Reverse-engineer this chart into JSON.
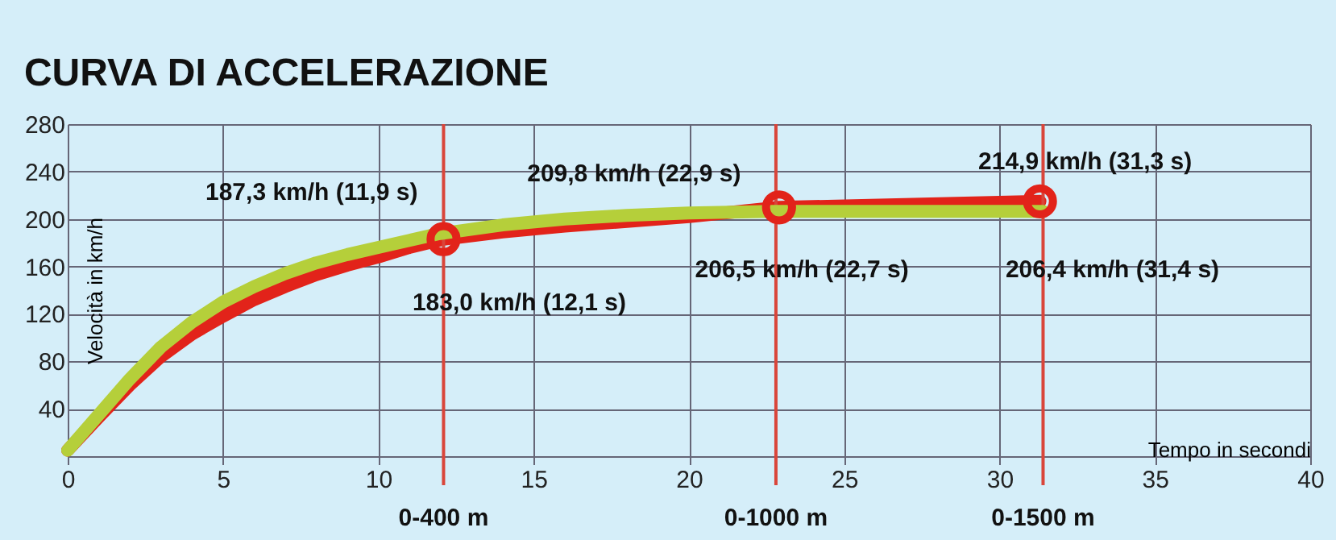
{
  "chart_data": {
    "type": "line",
    "title": "CURVA DI ACCELERAZIONE",
    "xlabel": "Tempo in secondi",
    "ylabel": "Velocità in km/h",
    "xlim": [
      0,
      40
    ],
    "xticks": [
      0,
      5,
      10,
      15,
      20,
      25,
      30,
      35,
      40
    ],
    "ylim": [
      0,
      280
    ],
    "yticks": [
      {
        "value": 0,
        "label": null
      },
      40,
      80,
      120,
      160,
      200,
      240,
      280
    ],
    "grid": true,
    "line_style": "solid",
    "series": [
      {
        "color": "#e2231a",
        "x": [
          0,
          1,
          2,
          3,
          4,
          5,
          6,
          7,
          8,
          9,
          10,
          11,
          12.1,
          14,
          16,
          18,
          20,
          22.9,
          31.3
        ],
        "values": [
          5,
          33,
          60,
          84,
          103,
          118,
          132,
          143,
          153,
          161,
          168,
          176,
          183,
          189,
          194,
          198,
          202,
          209.8,
          214.9
        ]
      },
      {
        "color": "#b5cf3a",
        "x": [
          0,
          1,
          2,
          3,
          4,
          5,
          6,
          7,
          8,
          9,
          10,
          11,
          11.9,
          14,
          16,
          18,
          20,
          22.7,
          31.4
        ],
        "values": [
          5,
          35,
          65,
          92,
          113,
          130,
          143,
          154,
          163,
          170,
          176,
          182,
          187.3,
          195,
          200,
          203,
          205,
          206.5,
          206.4
        ]
      },
      {
        "type": "scatter",
        "marker": "circle",
        "color": "#e2231a",
        "x": [
          12.1,
          22.9,
          31.3
        ],
        "values": [
          183.0,
          209.8,
          214.9
        ]
      }
    ],
    "ref_lines": [
      {
        "axis": "x",
        "value": 12.1,
        "label": "0-400 m",
        "color": "#d9453a"
      },
      {
        "axis": "x",
        "value": 22.8,
        "label": "0-1000 m",
        "color": "#d9453a"
      },
      {
        "axis": "x",
        "value": 31.4,
        "label": "0-1500 m",
        "color": "#d9453a"
      }
    ],
    "annotations": [
      {
        "text": "187,3 km/h (11,9 s)",
        "x": 11.9,
        "y": 187.3
      },
      {
        "text": "183,0 km/h (12,1 s)",
        "x": 12.1,
        "y": 183.0
      },
      {
        "text": "209,8 km/h (22,9 s)",
        "x": 22.9,
        "y": 209.8
      },
      {
        "text": "206,5 km/h (22,7 s)",
        "x": 22.7,
        "y": 206.5
      },
      {
        "text": "214,9 km/h (31,3 s)",
        "x": 31.3,
        "y": 214.9
      },
      {
        "text": "206,4 km/h (31,4 s)",
        "x": 31.4,
        "y": 206.4
      }
    ]
  }
}
